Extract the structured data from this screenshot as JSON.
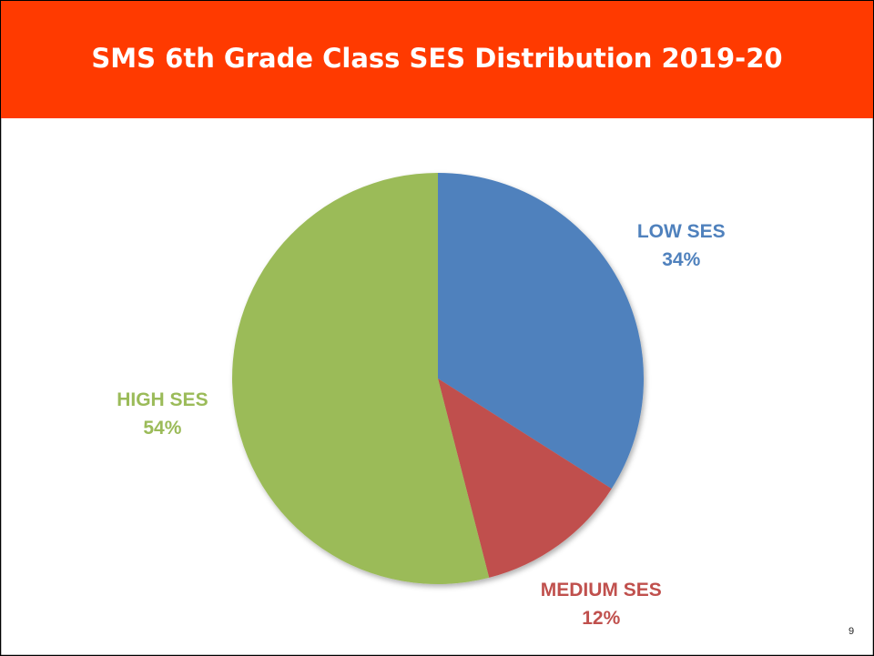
{
  "chart_data": {
    "type": "pie",
    "title": "SMS 6th Grade Class SES Distribution 2019-20",
    "categories": [
      "LOW SES",
      "MEDIUM SES",
      "HIGH SES"
    ],
    "values": [
      34,
      12,
      54
    ],
    "value_labels": [
      "34%",
      "12%",
      "54%"
    ],
    "colors": [
      "#4f81bd",
      "#c0504d",
      "#9bbb59"
    ]
  },
  "page_number": 9
}
